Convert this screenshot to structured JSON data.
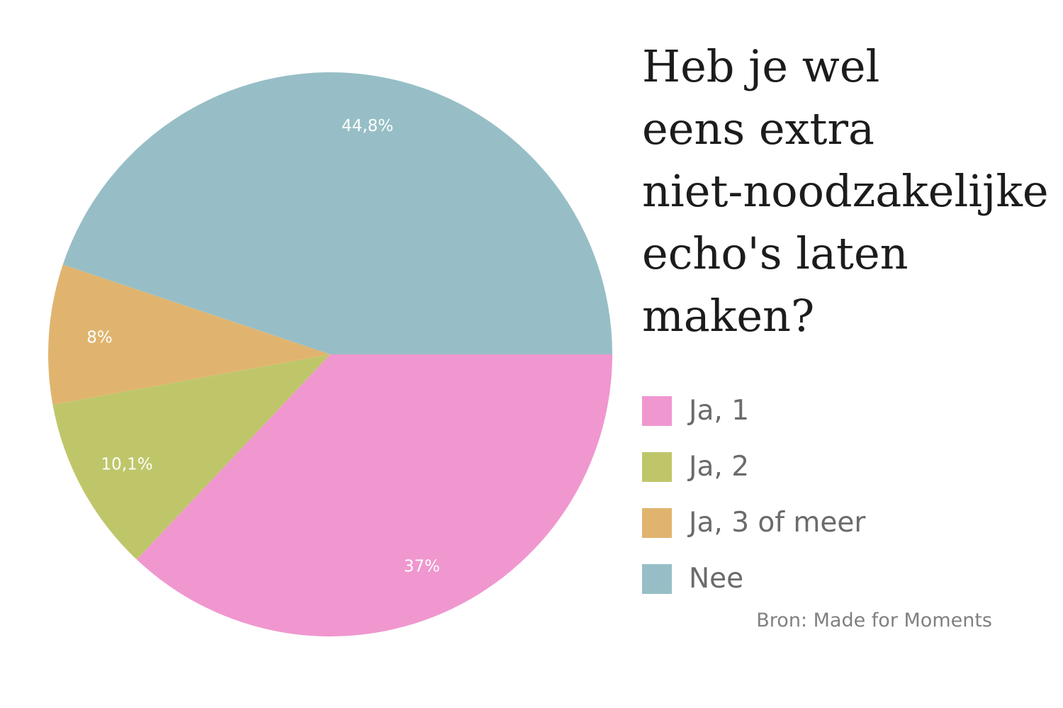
{
  "chart_data": {
    "type": "pie",
    "title_lines": [
      "Heb je wel",
      "eens extra",
      "niet-noodzakelijke",
      "echo's laten",
      "maken?"
    ],
    "slices": [
      {
        "name": "Ja, 1",
        "value": 37.0,
        "label": "37%",
        "color": "#f097cf"
      },
      {
        "name": "Ja, 2",
        "value": 10.1,
        "label": "10,1%",
        "color": "#bfc66a"
      },
      {
        "name": "Ja, 3 of meer",
        "value": 8.0,
        "label": "8%",
        "color": "#e0b46f"
      },
      {
        "name": "Nee",
        "value": 44.8,
        "label": "44,8%",
        "color": "#97bec6"
      }
    ],
    "start_angle_deg": 0,
    "direction": "clockwise",
    "legend_position": "right",
    "source": "Bron: Made for Moments"
  }
}
